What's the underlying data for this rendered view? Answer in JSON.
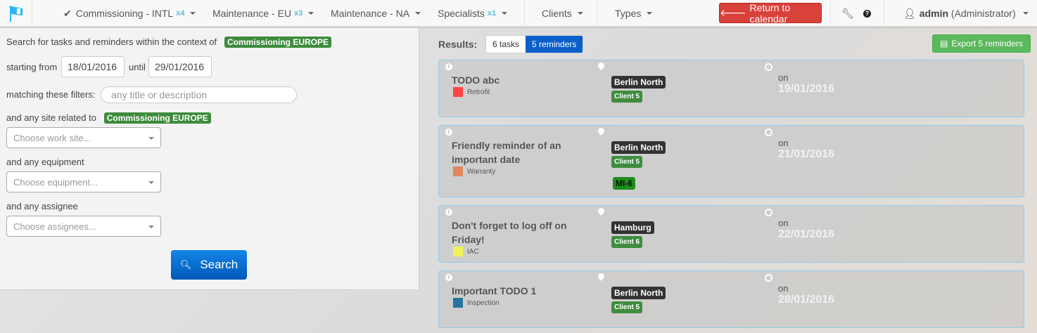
{
  "nav": {
    "items": [
      {
        "label": "Commissioning - INTL",
        "count": "x4",
        "checked": true
      },
      {
        "label": "Maintenance - EU",
        "count": "x3"
      },
      {
        "label": "Maintenance - NA",
        "count": ""
      },
      {
        "label": "Specialists",
        "count": "x1"
      },
      {
        "label": "Clients"
      },
      {
        "label": "Types"
      }
    ],
    "return_label": "Return to calendar",
    "user": "admin",
    "role": "(Administrator)"
  },
  "search": {
    "intro": "Search for tasks and reminders within the context of",
    "context": "Commissioning EUROPE",
    "starting_from": "starting from",
    "from_date": "18/01/2016",
    "until": "until",
    "until_date": "29/01/2016",
    "filters_label": "matching these filters:",
    "filter_placeholder": "any title or description",
    "site_label": "and any site related to",
    "site_context": "Commissioning EUROPE",
    "site_placeholder": "Choose work site...",
    "equipment_label": "and any equipment",
    "equipment_placeholder": "Choose equipment...",
    "assignee_label": "and any assignee",
    "assignee_placeholder": "Choose assignees...",
    "button": "Search"
  },
  "results": {
    "label": "Results:",
    "tasks": "6 tasks",
    "reminders": "5 reminders",
    "export": "Export 5 reminders",
    "cards": [
      {
        "title": "TODO abc",
        "type": "Retrofit",
        "color": "#ff4444",
        "site": "Berlin North",
        "client": "Client 5",
        "on": "on",
        "date": "19/01/2016"
      },
      {
        "title": "Friendly reminder of an important date",
        "type": "Warranty",
        "color": "#e0875f",
        "site": "Berlin North",
        "client": "Client 5",
        "equipment": "MI-6",
        "on": "on",
        "date": "21/01/2016"
      },
      {
        "title": "Don't forget to log off on Friday!",
        "type": "IAC",
        "color": "#eef25a",
        "site": "Hamburg",
        "client": "Client 6",
        "on": "on",
        "date": "22/01/2016"
      },
      {
        "title": "Important TODO 1",
        "type": "Inspection",
        "color": "#26739e",
        "site": "Berlin North",
        "client": "Client 5",
        "on": "on",
        "date": "28/01/2016"
      }
    ]
  }
}
